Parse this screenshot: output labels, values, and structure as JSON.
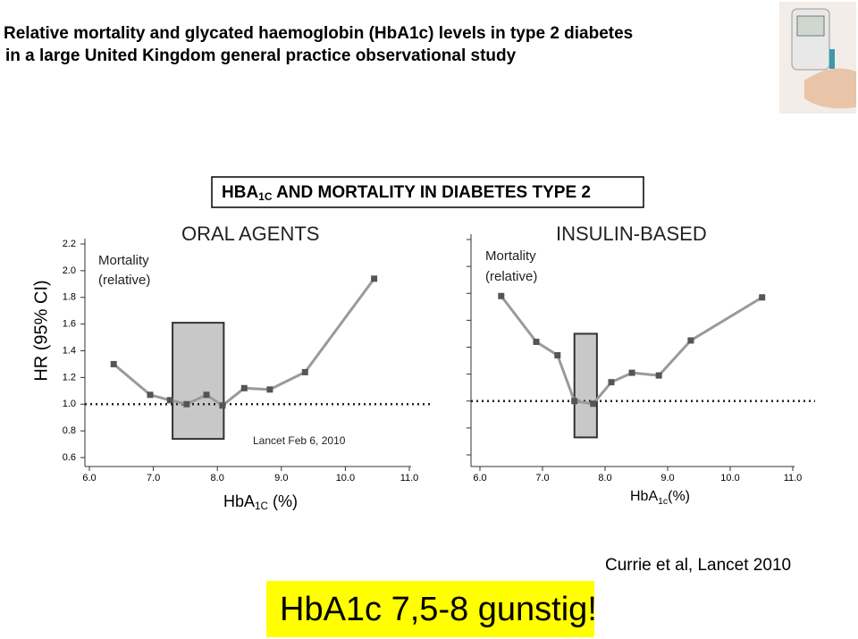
{
  "header": {
    "title_lines": [
      "Relative mortality and glycated haemoglobin (HbA1c) levels in type 2 diabetes",
      "in a large United Kingdom general practice observational study"
    ]
  },
  "figure_title": {
    "base": "HBA",
    "sub": "1C",
    "rest": " AND MORTALITY IN DIABETES TYPE 2"
  },
  "chart_data": [
    {
      "type": "line",
      "title": "ORAL AGENTS",
      "annotations": [
        "Mortality",
        "(relative)",
        "Lancet Feb 6, 2010"
      ],
      "ylabel": "HR (95% CI)",
      "xlabel": {
        "base": "HbA",
        "sub": "1C",
        "rest": " (%)"
      },
      "x": [
        6.38,
        6.95,
        7.26,
        7.52,
        7.83,
        8.08,
        8.42,
        8.82,
        9.37,
        10.45
      ],
      "values": [
        1.3,
        1.07,
        1.03,
        1.0,
        1.07,
        0.99,
        1.12,
        1.11,
        1.24,
        1.94
      ],
      "color": "#9a9a9a",
      "marker_color": "#555555",
      "xlim": [
        6,
        11
      ],
      "xticks": [
        {
          "value": 6,
          "label": "6.0"
        },
        {
          "value": 7,
          "label": "7.0"
        },
        {
          "value": 8,
          "label": "8.0"
        },
        {
          "value": 9,
          "label": "9.0"
        },
        {
          "value": 10,
          "label": "10.0"
        },
        {
          "value": 11,
          "label": "11.0"
        }
      ],
      "ylim": [
        0.6,
        2.2
      ],
      "yticks": [
        0.6,
        0.8,
        {
          "value": 1,
          "label": "1.0"
        },
        1.2,
        1.4,
        1.6,
        1.8,
        {
          "value": 2,
          "label": "2.0"
        },
        2.2
      ],
      "ytick_labels": true,
      "reference_line": 1,
      "shaded_box": {
        "x": [
          7.3,
          8.1
        ],
        "y": [
          0.74,
          1.61
        ]
      }
    },
    {
      "type": "line",
      "title": "INSULIN-BASED",
      "annotations": [
        "Mortality",
        "(relative)"
      ],
      "xlabel": {
        "base": "HbA",
        "sub": "1c",
        "rest": "(%)"
      },
      "x": [
        6.34,
        6.9,
        7.24,
        7.51,
        7.81,
        8.1,
        8.43,
        8.86,
        9.37,
        10.51
      ],
      "values": [
        1.78,
        1.44,
        1.34,
        1.0,
        0.98,
        1.14,
        1.21,
        1.19,
        1.45,
        1.77
      ],
      "color": "#9a9a9a",
      "marker_color": "#555555",
      "xlim": [
        6,
        11
      ],
      "xticks": [
        {
          "value": 6,
          "label": "6.0"
        },
        {
          "value": 7,
          "label": "7.0"
        },
        {
          "value": 8,
          "label": "8.0"
        },
        {
          "value": 9,
          "label": "9.0"
        },
        {
          "value": 10,
          "label": "10.0"
        },
        {
          "value": 11,
          "label": "11.0"
        }
      ],
      "ylim": [
        0.6,
        2.2
      ],
      "yticks": [
        0.6,
        0.8,
        {
          "value": 1,
          "label": "1.0"
        },
        1.2,
        1.4,
        1.6,
        1.8,
        {
          "value": 2,
          "label": "2.0"
        },
        2.2
      ],
      "ytick_labels": false,
      "reference_line": 1,
      "shaded_box": {
        "x": [
          7.51,
          7.87
        ],
        "y": [
          0.73,
          1.5
        ]
      }
    }
  ],
  "citation": "Currie et al, Lancet 2010",
  "callout": "HbA1c 7,5-8 gunstig!"
}
